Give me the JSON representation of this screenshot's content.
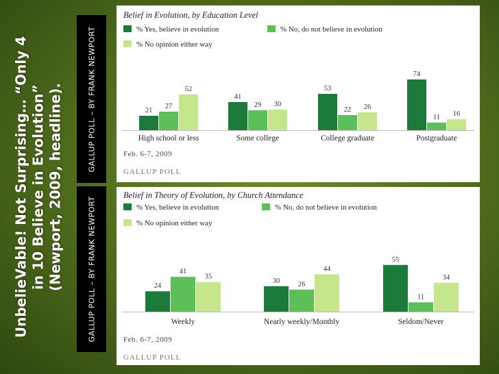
{
  "headline": {
    "line1": "UnbelieVable! Not Surprising… “Only 4",
    "line2": "in 10 Believe in Evolution”",
    "line3": "(Newport, 2009, headline)."
  },
  "credits": {
    "top": "GALLUP POLL – BY FRANK NEWPORT",
    "bottom": "GALLUP POLL – BY FRANK NEWPORT"
  },
  "colors": {
    "yes": "#1c7a3a",
    "no": "#5cbf5a",
    "noop": "#c6e68c"
  },
  "chart_data": [
    {
      "type": "bar",
      "title": "Belief in Evolution, by Education Level",
      "categories": [
        "High school or less",
        "Some college",
        "College graduate",
        "Postgraduate"
      ],
      "series": [
        {
          "name": "% Yes, believe in evolution",
          "values": [
            21,
            41,
            53,
            74
          ]
        },
        {
          "name": "% No, do not believe in evolution",
          "values": [
            27,
            29,
            22,
            11
          ]
        },
        {
          "name": "% No opinion either way",
          "values": [
            52,
            30,
            26,
            16
          ]
        }
      ],
      "ylim": [
        0,
        80
      ],
      "date": "Feb. 6-7, 2009",
      "source": "GALLUP POLL",
      "legend_position": "top-left"
    },
    {
      "type": "bar",
      "title": "Belief in Theory of Evolution, by Church Attendance",
      "categories": [
        "Weekly",
        "Nearly weekly/Monthly",
        "Seldom/Never"
      ],
      "series": [
        {
          "name": "% Yes, believe in evolution",
          "values": [
            24,
            30,
            55
          ]
        },
        {
          "name": "% No, do not believe in evolution",
          "values": [
            41,
            26,
            11
          ]
        },
        {
          "name": "% No opinion either way",
          "values": [
            35,
            44,
            34
          ]
        }
      ],
      "ylim": [
        0,
        60
      ],
      "date": "Feb. 6-7, 2009",
      "source": "GALLUP POLL",
      "legend_position": "top-left"
    }
  ]
}
